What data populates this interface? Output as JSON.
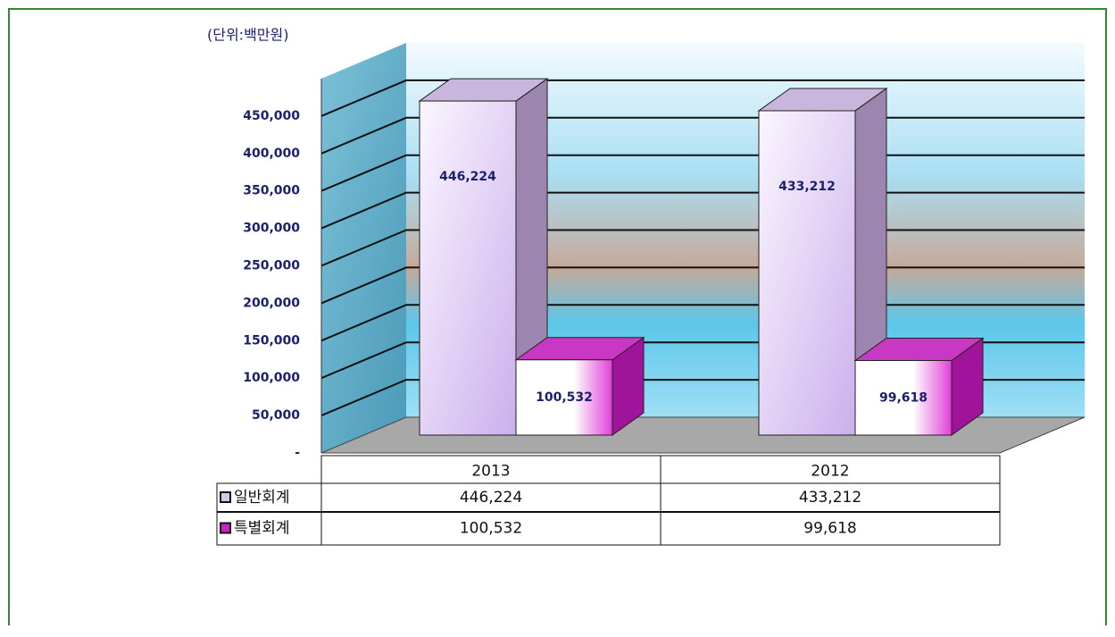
{
  "chart_data": {
    "type": "bar3d",
    "unit_label": "(단위:백만원)",
    "categories": [
      "2013",
      "2012"
    ],
    "series": [
      {
        "name": "일반회계",
        "color": "#d8c4f0",
        "values": [
          446224,
          433212
        ],
        "value_labels": [
          "446,224",
          "433,212"
        ]
      },
      {
        "name": "특별회계",
        "color": "#d020c8",
        "values": [
          100532,
          99618
        ],
        "value_labels": [
          "100,532",
          "99,618"
        ]
      }
    ],
    "ylim": [
      0,
      500000
    ],
    "yticks": [
      {
        "value": 0,
        "label": "-"
      },
      {
        "value": 50000,
        "label": "50,000"
      },
      {
        "value": 100000,
        "label": "100,000"
      },
      {
        "value": 150000,
        "label": "150,000"
      },
      {
        "value": 200000,
        "label": "200,000"
      },
      {
        "value": 250000,
        "label": "250,000"
      },
      {
        "value": 300000,
        "label": "300,000"
      },
      {
        "value": 350000,
        "label": "350,000"
      },
      {
        "value": 400000,
        "label": "400,000"
      },
      {
        "value": 450000,
        "label": "450,000"
      }
    ],
    "grid": true
  }
}
